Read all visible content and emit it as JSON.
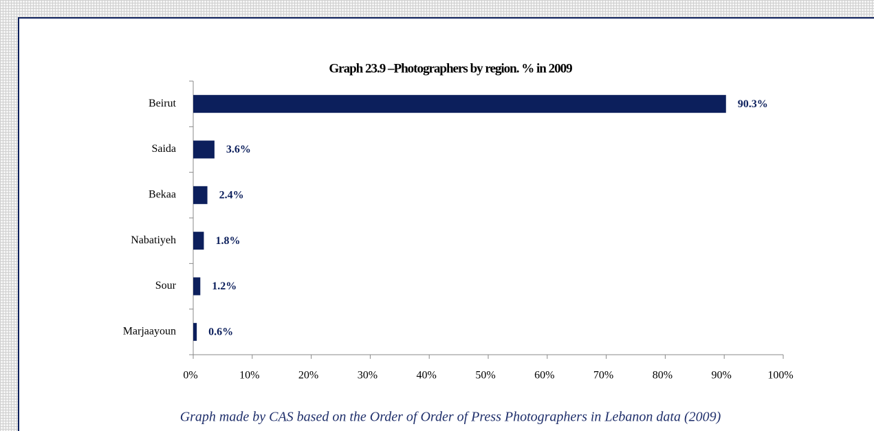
{
  "chart_data": {
    "type": "hbar",
    "title": "Graph 23.9 –Photographers by region. % in 2009",
    "caption": "Graph made by CAS based on the Order of Order of Press Photographers in Lebanon data (2009)",
    "categories": [
      "Beirut",
      "Saida",
      "Bekaa",
      "Nabatiyeh",
      "Sour",
      "Marjaayoun"
    ],
    "values": [
      90.3,
      3.6,
      2.4,
      1.8,
      1.2,
      0.6
    ],
    "value_labels": [
      "90.3%",
      "3.6%",
      "2.4%",
      "1.8%",
      "1.2%",
      "0.6%"
    ],
    "color": "#0c1f5c",
    "xlim": [
      0,
      100
    ],
    "xticks": [
      {
        "value": 0,
        "label": "0%"
      },
      {
        "value": 10,
        "label": "10%"
      },
      {
        "value": 20,
        "label": "20%"
      },
      {
        "value": 30,
        "label": "30%"
      },
      {
        "value": 40,
        "label": "40%"
      },
      {
        "value": 50,
        "label": "50%"
      },
      {
        "value": 60,
        "label": "60%"
      },
      {
        "value": 70,
        "label": "70%"
      },
      {
        "value": 80,
        "label": "80%"
      },
      {
        "value": 90,
        "label": "90%"
      },
      {
        "value": 100,
        "label": "100%"
      }
    ]
  }
}
